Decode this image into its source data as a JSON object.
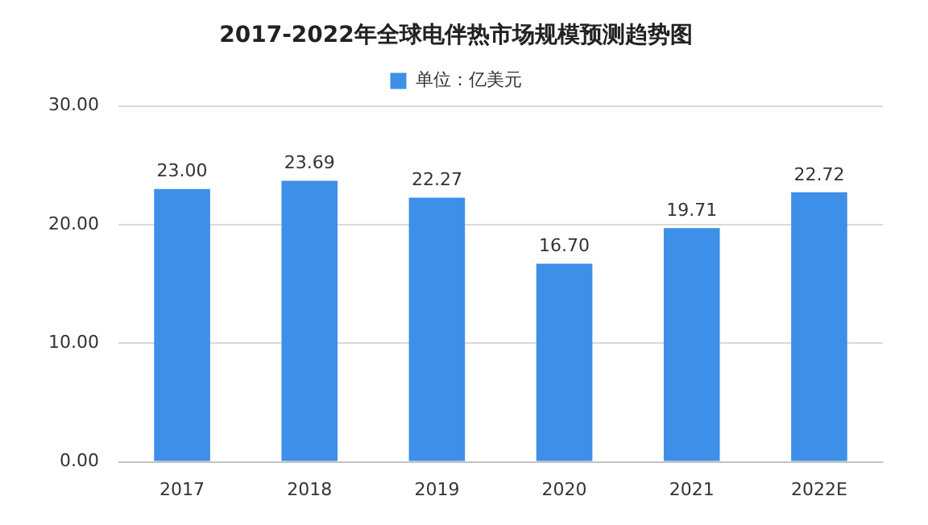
{
  "chart_data": {
    "type": "bar",
    "title": "2017-2022年全球电伴热市场规模预测趋势图",
    "categories": [
      "2017",
      "2018",
      "2019",
      "2020",
      "2021",
      "2022E"
    ],
    "series": [
      {
        "name": "单位：亿美元",
        "color": "#3d8fe8",
        "values": [
          23.0,
          23.69,
          22.27,
          16.7,
          19.71,
          22.72
        ],
        "value_labels": [
          "23.00",
          "23.69",
          "22.27",
          "16.70",
          "19.71",
          "22.72"
        ]
      }
    ],
    "ylim": [
      0,
      30
    ],
    "yticks": [
      {
        "value": 0,
        "label": "0.00"
      },
      {
        "value": 10,
        "label": "10.00"
      },
      {
        "value": 20,
        "label": "20.00"
      },
      {
        "value": 30,
        "label": "30.00"
      }
    ],
    "grid": "y",
    "legend": "top"
  }
}
